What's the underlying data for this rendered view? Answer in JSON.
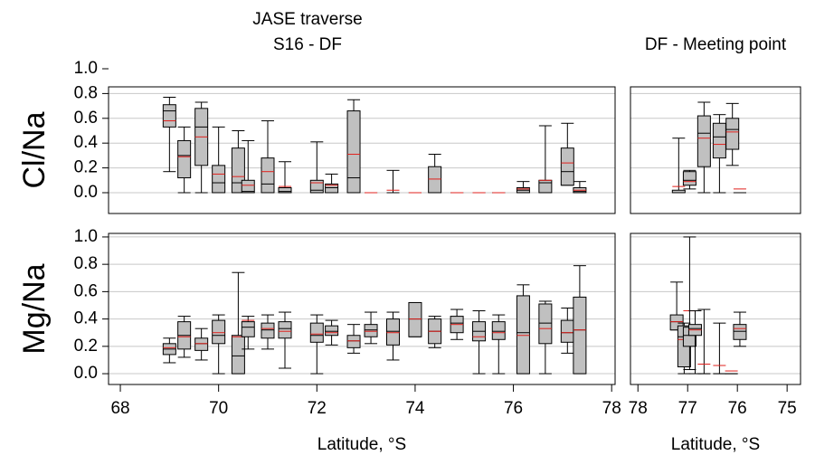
{
  "chart_data": [
    {
      "type": "box",
      "title": "JASE traverse",
      "subtitle": "S16 - DF",
      "ylabel": "Cl/Na",
      "xlim": [
        67.76,
        78.07
      ],
      "ylim": [
        -0.168,
        0.854
      ],
      "yticks": [
        {
          "value": 0,
          "label": "0.0"
        },
        {
          "value": 0.2,
          "label": "0.2"
        },
        {
          "value": 0.4,
          "label": "0.4"
        },
        {
          "value": 0.6,
          "label": "0.6"
        },
        {
          "value": 0.8,
          "label": "0.8"
        },
        {
          "value": 1,
          "label": "1.0"
        }
      ],
      "show_ytick_labels": true,
      "grid": true,
      "box_color": "#c0c0c0",
      "median_color": "#000000",
      "mean_color": "#e0201c",
      "x": [
        69.0,
        69.3,
        69.65,
        70.0,
        70.4,
        70.6,
        71.0,
        71.35,
        72.0,
        72.3,
        72.75,
        73.1,
        73.55,
        74.0,
        74.4,
        74.85,
        75.3,
        75.7,
        76.2,
        76.65,
        77.1,
        77.35
      ],
      "min": [
        0.17,
        0,
        0,
        0,
        0,
        0,
        0,
        0,
        0,
        0,
        0,
        0,
        0,
        0,
        0,
        0,
        0,
        0,
        0,
        0,
        0.06,
        0
      ],
      "q1": [
        0.53,
        0.12,
        0.22,
        0,
        0,
        0,
        0,
        0,
        0,
        0,
        0,
        0,
        0,
        0,
        0,
        0,
        0,
        0,
        0,
        0,
        0.06,
        0
      ],
      "median": [
        0.66,
        0.3,
        0.53,
        0.08,
        0.08,
        0.01,
        0.07,
        0.01,
        0.02,
        0.04,
        0.12,
        0,
        0,
        0,
        0,
        0,
        0,
        0,
        0.02,
        0.08,
        0.17,
        0.01
      ],
      "q3": [
        0.71,
        0.42,
        0.68,
        0.22,
        0.36,
        0.1,
        0.28,
        0.04,
        0.1,
        0.07,
        0.66,
        0,
        0,
        0,
        0.21,
        0,
        0,
        0,
        0.04,
        0.1,
        0.36,
        0.04
      ],
      "max": [
        0.77,
        0.53,
        0.73,
        0.53,
        0.5,
        0.42,
        0.58,
        0.25,
        0.41,
        0.15,
        0.75,
        0,
        0.18,
        0,
        0.31,
        0,
        0,
        0,
        0.09,
        0.54,
        0.56,
        0.09
      ],
      "mean": [
        0.58,
        0.29,
        0.45,
        0.15,
        0.13,
        0.06,
        0.17,
        0.05,
        0.08,
        0.06,
        0.31,
        0,
        0.02,
        0,
        0.11,
        0,
        0,
        0,
        0.03,
        0.1,
        0.24,
        0.02
      ]
    },
    {
      "type": "box",
      "title": "DF - Meeting point",
      "xlim": [
        78.15,
        74.73
      ],
      "ylim": [
        -0.168,
        0.854
      ],
      "yticks": [
        0,
        0.2,
        0.4,
        0.6,
        0.8
      ],
      "show_ytick_labels": false,
      "grid": true,
      "box_color": "#c0c0c0",
      "median_color": "#000000",
      "mean_color": "#e0201c",
      "x": [
        77.18,
        76.96,
        76.67,
        76.36,
        76.1,
        75.95
      ],
      "min": [
        0,
        0.03,
        0,
        0,
        0.22,
        0
      ],
      "q1": [
        0,
        0.06,
        0.21,
        0.28,
        0.35,
        0
      ],
      "median": [
        0,
        0.1,
        0.48,
        0.45,
        0.51,
        0
      ],
      "q3": [
        0.02,
        0.17,
        0.62,
        0.56,
        0.6,
        0
      ],
      "max": [
        0.44,
        0.18,
        0.73,
        0.63,
        0.72,
        0
      ],
      "mean": [
        0.05,
        0.09,
        0.44,
        0.39,
        0.49,
        0.03
      ]
    },
    {
      "type": "box",
      "ylabel": "Mg/Na",
      "xlabel": "Latitude, °S",
      "xlim": [
        67.76,
        78.07
      ],
      "ylim": [
        -0.079,
        1.026
      ],
      "xticks": [
        68,
        70,
        72,
        74,
        76,
        78
      ],
      "yticks": [
        {
          "value": 0,
          "label": "0.0"
        },
        {
          "value": 0.2,
          "label": "0.2"
        },
        {
          "value": 0.4,
          "label": "0.4"
        },
        {
          "value": 0.6,
          "label": "0.6"
        },
        {
          "value": 0.8,
          "label": "0.8"
        },
        {
          "value": 1,
          "label": "1.0"
        }
      ],
      "show_ytick_labels": true,
      "grid": true,
      "box_color": "#c0c0c0",
      "median_color": "#000000",
      "mean_color": "#e0201c",
      "x": [
        69.0,
        69.3,
        69.65,
        70.0,
        70.4,
        70.6,
        71.0,
        71.35,
        72.0,
        72.3,
        72.75,
        73.1,
        73.55,
        74.0,
        74.4,
        74.85,
        75.3,
        75.7,
        76.2,
        76.65,
        77.1,
        77.35
      ],
      "min": [
        0.08,
        0.12,
        0.1,
        0,
        0,
        0.18,
        0.18,
        0.04,
        0,
        0.21,
        0.15,
        0.22,
        0.1,
        0.27,
        0.19,
        0.25,
        0,
        0,
        0,
        0,
        0.15,
        0
      ],
      "q1": [
        0.14,
        0.18,
        0.17,
        0.22,
        0,
        0.27,
        0.26,
        0.26,
        0.23,
        0.28,
        0.19,
        0.27,
        0.21,
        0.27,
        0.22,
        0.3,
        0.24,
        0.25,
        0,
        0.22,
        0.23,
        0
      ],
      "median": [
        0.18,
        0.28,
        0.22,
        0.28,
        0.13,
        0.34,
        0.32,
        0.33,
        0.28,
        0.31,
        0.24,
        0.32,
        0.31,
        0.4,
        0.31,
        0.37,
        0.31,
        0.31,
        0.3,
        0.37,
        0.3,
        0.32
      ],
      "q3": [
        0.22,
        0.38,
        0.26,
        0.39,
        0.28,
        0.38,
        0.37,
        0.38,
        0.37,
        0.35,
        0.28,
        0.36,
        0.4,
        0.52,
        0.4,
        0.42,
        0.38,
        0.38,
        0.57,
        0.51,
        0.39,
        0.56
      ],
      "max": [
        0.26,
        0.42,
        0.33,
        0.43,
        0.74,
        0.42,
        0.43,
        0.45,
        0.43,
        0.39,
        0.36,
        0.45,
        0.45,
        0.52,
        0.42,
        0.47,
        0.46,
        0.43,
        0.65,
        0.53,
        0.48,
        0.79
      ],
      "mean": [
        0.19,
        0.27,
        0.22,
        0.3,
        0.27,
        0.39,
        0.33,
        0.31,
        0.29,
        0.3,
        0.24,
        0.31,
        0.3,
        0.4,
        0.31,
        0.36,
        0.27,
        0.3,
        0.28,
        0.33,
        0.3,
        0.32
      ]
    },
    {
      "type": "box",
      "xlabel": "Latitude, °S",
      "xlim": [
        78.15,
        74.73
      ],
      "ylim": [
        -0.079,
        1.026
      ],
      "xticks": [
        78,
        77,
        76,
        75
      ],
      "yticks": [
        0,
        0.2,
        0.4,
        0.6,
        0.8,
        1
      ],
      "show_ytick_labels": false,
      "grid": true,
      "box_color": "#c0c0c0",
      "median_color": "#000000",
      "mean_color": "#e0201c",
      "x": [
        77.22,
        77.07,
        76.96,
        76.85,
        76.67,
        76.36,
        76.12,
        75.95
      ],
      "min": [
        0.32,
        0,
        0.03,
        0,
        0,
        0,
        0,
        0.2
      ],
      "q1": [
        0.32,
        0.05,
        0.2,
        0.28,
        0,
        0,
        0,
        0.25
      ],
      "median": [
        0.38,
        0.27,
        0.28,
        0.33,
        0,
        0,
        0,
        0.31
      ],
      "q3": [
        0.43,
        0.35,
        0.34,
        0.36,
        0,
        0,
        0,
        0.36
      ],
      "max": [
        0.67,
        0.37,
        1.0,
        0.46,
        0.47,
        0.37,
        0,
        0.45
      ],
      "mean": [
        0.38,
        0.25,
        0.46,
        0.32,
        0.07,
        0.06,
        0.02,
        0.33
      ]
    }
  ]
}
